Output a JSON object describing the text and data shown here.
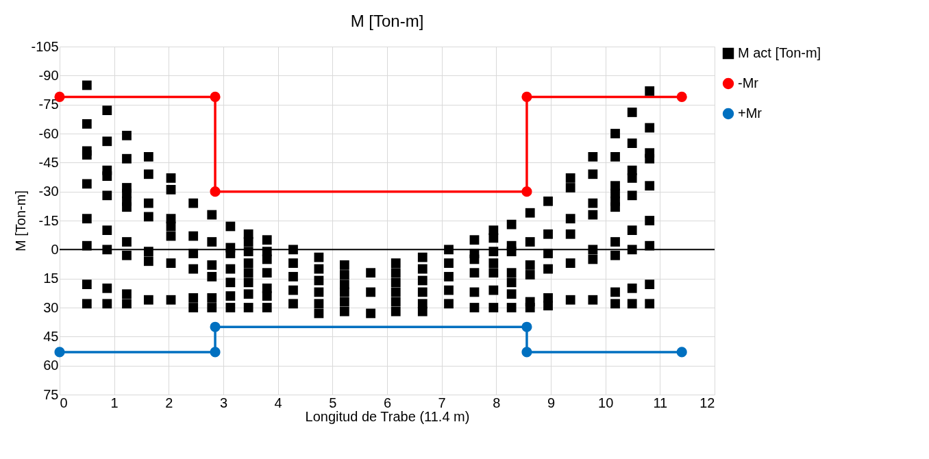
{
  "chart_data": {
    "type": "scatter",
    "title": "M [Ton-m]",
    "xlabel": "Longitud de Trabe (11.4 m)",
    "ylabel": "M [Ton-m]",
    "xlim": [
      0,
      12
    ],
    "xticks": [
      0,
      1,
      2,
      3,
      4,
      5,
      6,
      7,
      8,
      9,
      10,
      11,
      12
    ],
    "ylim": [
      75,
      -105
    ],
    "yticks": [
      -105,
      -90,
      -75,
      -60,
      -45,
      -30,
      -15,
      0,
      15,
      30,
      45,
      60,
      75
    ],
    "grid": true,
    "legend": "right",
    "ref_lines": [
      {
        "axis": "y",
        "value": 0,
        "color": "#000000"
      }
    ],
    "series": [
      {
        "name": "M act [Ton-m]",
        "marker": "square",
        "color": "#000000",
        "x": [
          0.5,
          0.5,
          0.5,
          0.5,
          0.5,
          0.5,
          0.5,
          0.5,
          0.5,
          0.87,
          0.87,
          0.87,
          0.87,
          0.87,
          0.87,
          0.87,
          0.87,
          0.87,
          1.23,
          1.23,
          1.23,
          1.23,
          1.23,
          1.23,
          1.23,
          1.23,
          1.23,
          1.23,
          1.63,
          1.63,
          1.63,
          1.63,
          1.63,
          1.63,
          1.63,
          2.04,
          2.04,
          2.04,
          2.04,
          2.04,
          2.04,
          2.04,
          2.45,
          2.45,
          2.45,
          2.45,
          2.45,
          2.45,
          2.79,
          2.79,
          2.79,
          2.79,
          2.79,
          2.79,
          3.13,
          3.13,
          3.13,
          3.13,
          3.13,
          3.13,
          3.13,
          3.46,
          3.46,
          3.46,
          3.46,
          3.46,
          3.46,
          3.46,
          3.46,
          3.8,
          3.8,
          3.8,
          3.8,
          3.8,
          3.8,
          3.8,
          4.28,
          4.28,
          4.28,
          4.28,
          4.28,
          4.75,
          4.75,
          4.75,
          4.75,
          4.75,
          4.75,
          5.22,
          5.22,
          5.22,
          5.22,
          5.22,
          5.22,
          5.7,
          5.7,
          5.7,
          6.16,
          6.16,
          6.16,
          6.16,
          6.16,
          6.16,
          6.65,
          6.65,
          6.65,
          6.65,
          6.65,
          6.65,
          7.13,
          7.13,
          7.13,
          7.13,
          7.13,
          7.6,
          7.6,
          7.6,
          7.6,
          7.6,
          7.6,
          7.95,
          7.95,
          7.95,
          7.95,
          7.95,
          7.95,
          7.95,
          8.28,
          8.28,
          8.28,
          8.28,
          8.28,
          8.28,
          8.28,
          8.62,
          8.62,
          8.62,
          8.62,
          8.62,
          8.62,
          8.95,
          8.95,
          8.95,
          8.95,
          8.95,
          8.95,
          9.36,
          9.36,
          9.36,
          9.36,
          9.36,
          9.36,
          9.77,
          9.77,
          9.77,
          9.77,
          9.77,
          9.77,
          9.77,
          10.18,
          10.18,
          10.18,
          10.18,
          10.18,
          10.18,
          10.18,
          10.18,
          10.18,
          10.18,
          10.49,
          10.49,
          10.49,
          10.49,
          10.49,
          10.49,
          10.49,
          10.49,
          10.49,
          10.81,
          10.81,
          10.81,
          10.81,
          10.81,
          10.81,
          10.81,
          10.81,
          10.81
        ],
        "values": [
          -85,
          -65,
          -51,
          -49,
          -34,
          -16,
          -2,
          18,
          28,
          -72,
          -56,
          -41,
          -38,
          -28,
          -10,
          0,
          20,
          28,
          -59,
          -47,
          -32,
          -29,
          -25,
          -22,
          -4,
          3,
          23,
          28,
          -48,
          -39,
          -24,
          -17,
          1,
          6,
          26,
          -37,
          -31,
          -16,
          -12,
          -7,
          7,
          26,
          -24,
          -7,
          2,
          10,
          25,
          30,
          -18,
          -4,
          8,
          14,
          25,
          30,
          -12,
          -1,
          2,
          10,
          17,
          24,
          30,
          -8,
          -4,
          1,
          7,
          12,
          17,
          23,
          30,
          -5,
          1,
          5,
          12,
          20,
          24,
          30,
          0,
          7,
          14,
          21,
          28,
          4,
          10,
          16,
          22,
          28,
          33,
          8,
          13,
          18,
          22,
          27,
          32,
          12,
          22,
          33,
          7,
          12,
          17,
          22,
          27,
          32,
          4,
          10,
          16,
          22,
          28,
          32,
          0,
          7,
          14,
          21,
          28,
          -5,
          2,
          5,
          12,
          22,
          30,
          -10,
          -6,
          1,
          7,
          12,
          21,
          30,
          -13,
          -2,
          1,
          12,
          17,
          23,
          30,
          -19,
          -4,
          8,
          13,
          27,
          30,
          -25,
          -8,
          2,
          10,
          25,
          29,
          -37,
          -32,
          -16,
          -8,
          7,
          26,
          -48,
          -39,
          -24,
          -18,
          0,
          5,
          26,
          -60,
          -48,
          -33,
          -29,
          -25,
          -22,
          -4,
          3,
          22,
          28,
          -71,
          -55,
          -41,
          -37,
          -28,
          -10,
          0,
          20,
          28,
          -82,
          -63,
          -50,
          -47,
          -33,
          -15,
          -2,
          18,
          28
        ]
      },
      {
        "name": "-Mr",
        "type": "line",
        "marker": "circle",
        "color": "#ff0000",
        "x": [
          0,
          2.85,
          2.85,
          8.56,
          8.56,
          11.4
        ],
        "values": [
          -79,
          -79,
          -30,
          -30,
          -79,
          -79
        ]
      },
      {
        "name": "+Mr",
        "type": "line",
        "marker": "circle",
        "color": "#0070c0",
        "x": [
          0,
          2.85,
          2.85,
          8.56,
          8.56,
          11.4
        ],
        "values": [
          53,
          53,
          40,
          40,
          53,
          53
        ]
      }
    ]
  }
}
